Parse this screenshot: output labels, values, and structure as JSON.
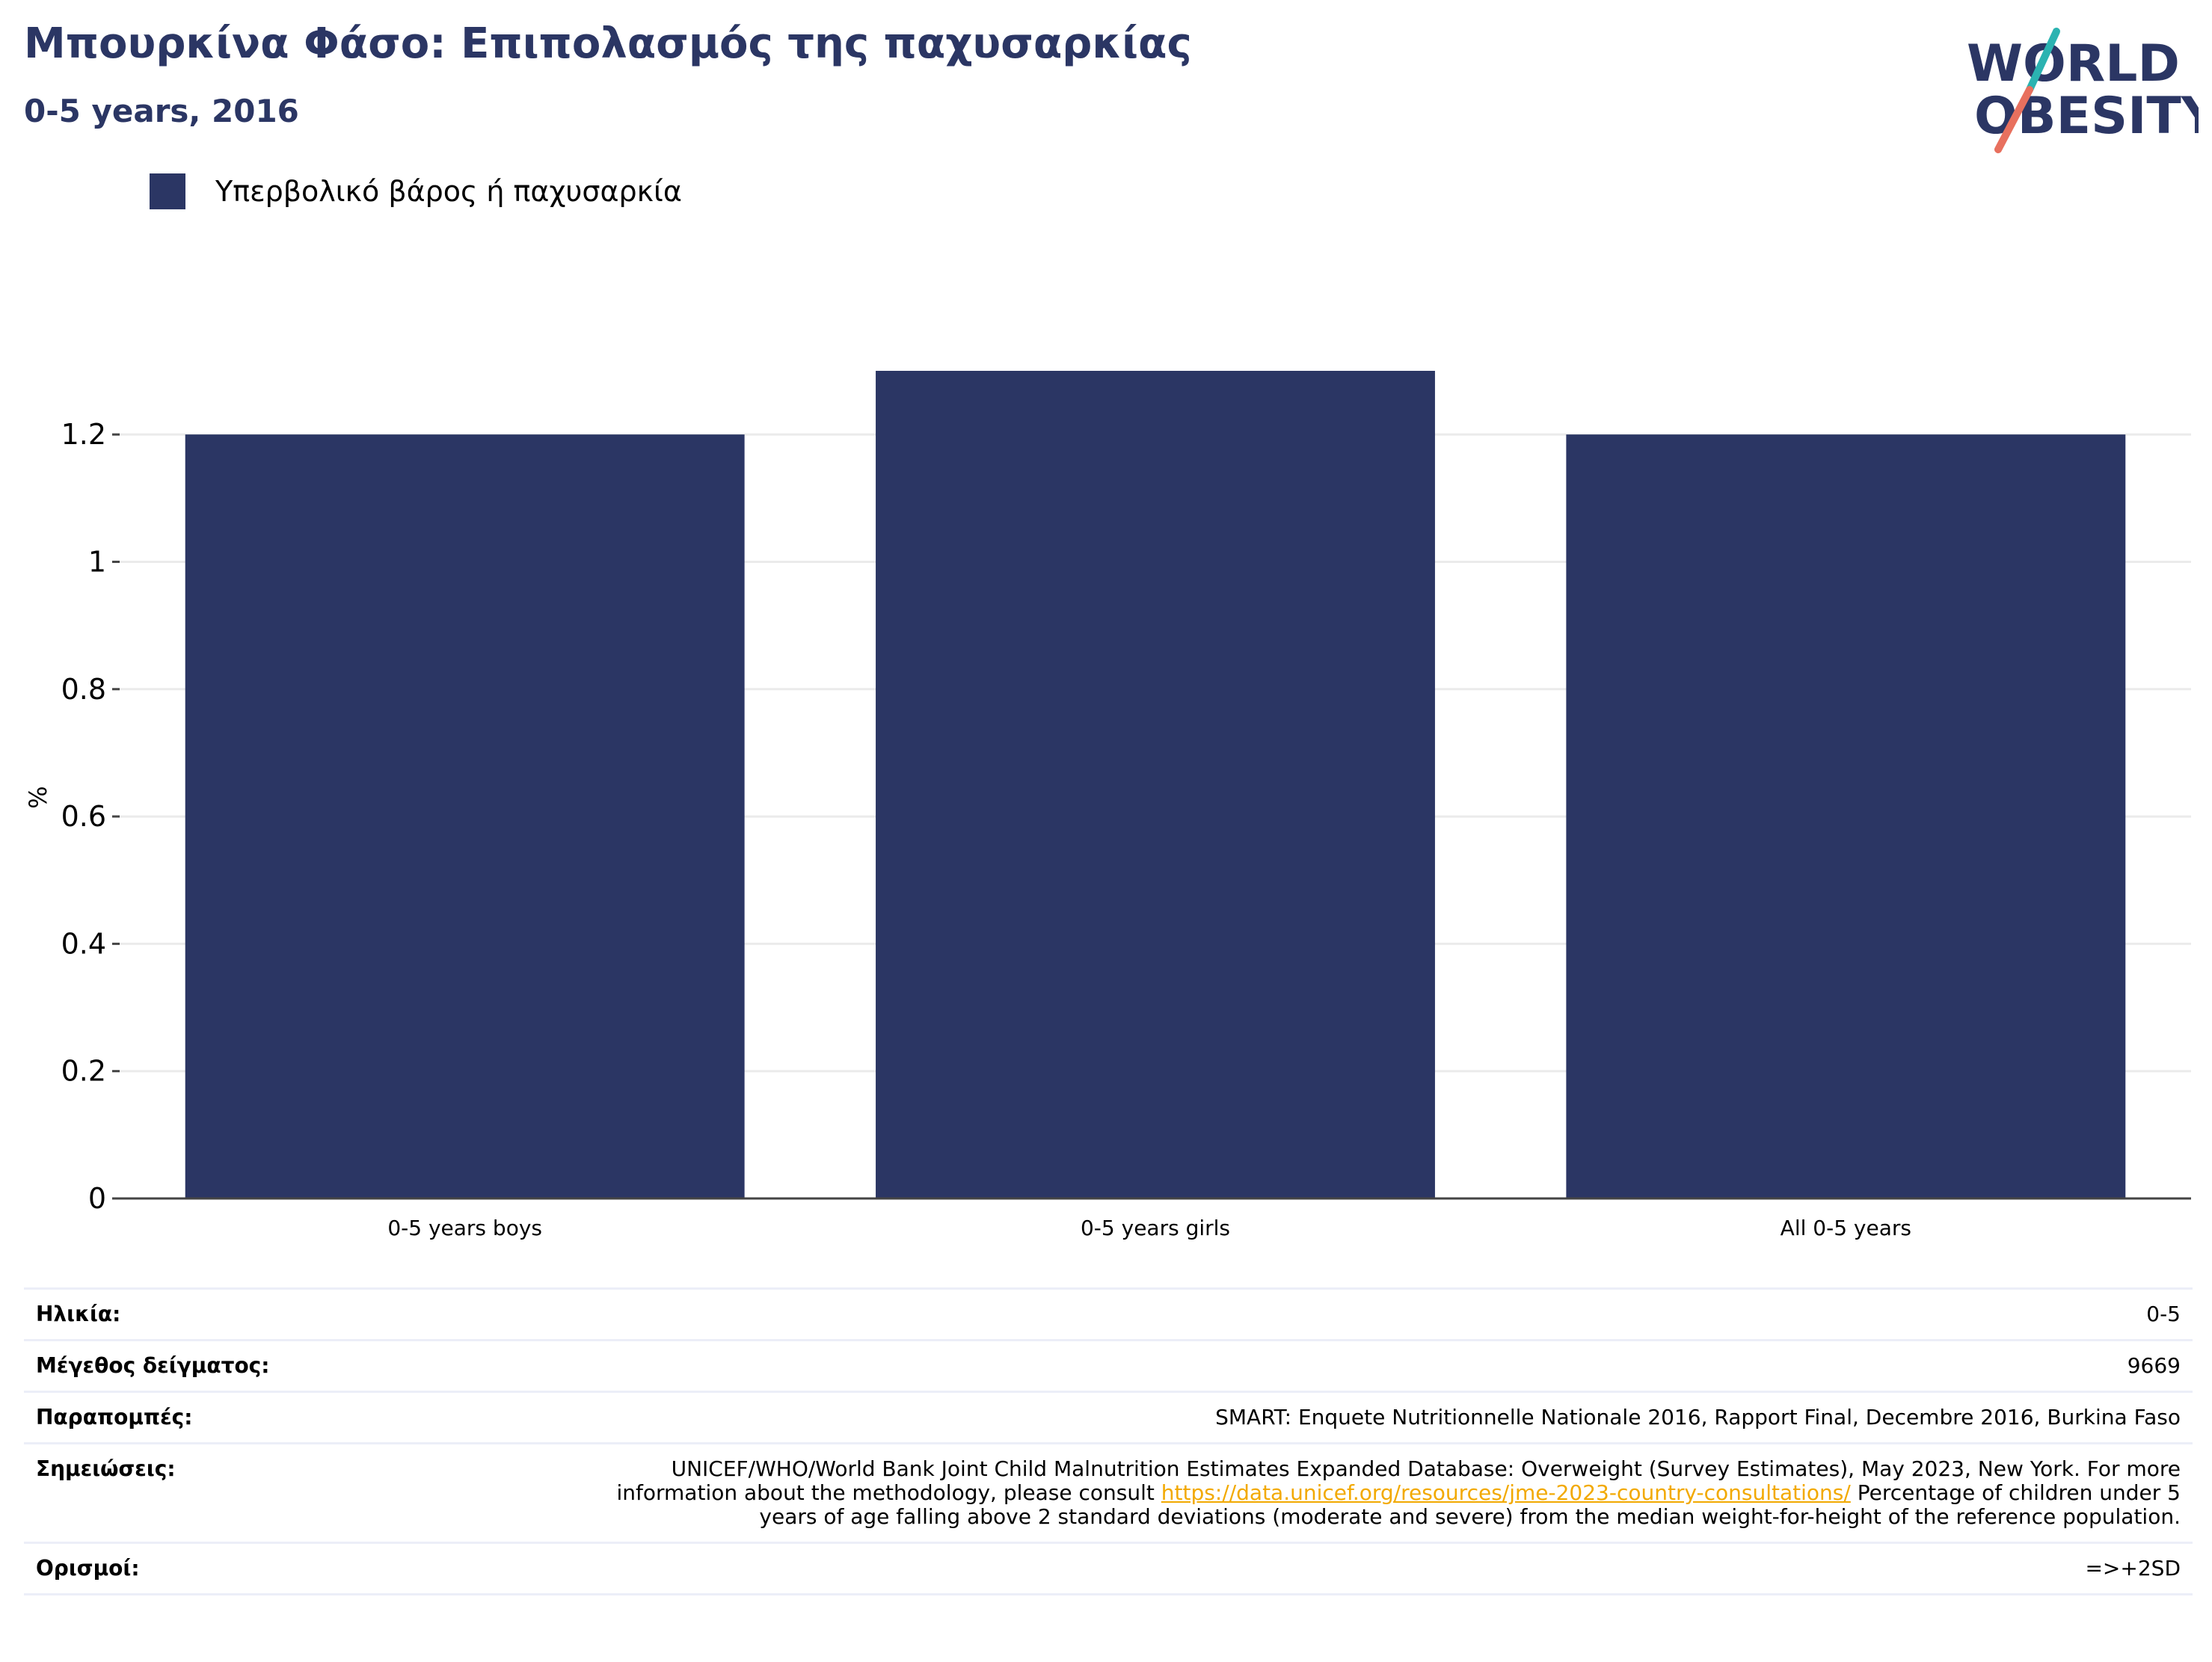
{
  "header": {
    "title": "Μπουρκίνα Φάσο: Επιπολασμός της παχυσαρκίας",
    "subtitle": "0-5 years, 2016"
  },
  "logo": {
    "line1": "WORLD",
    "line2": "OBESITY"
  },
  "legend": {
    "label": "Υπερβολικό βάρος ή παχυσαρκία",
    "color": "#2b3664"
  },
  "chart_data": {
    "type": "bar",
    "categories": [
      "0-5 years boys",
      "0-5 years girls",
      "All 0-5 years"
    ],
    "series": [
      {
        "name": "Υπερβολικό βάρος ή παχυσαρκία",
        "values": [
          1.2,
          1.3,
          1.2
        ]
      }
    ],
    "ylabel": "%",
    "ylim": [
      0,
      1.3
    ],
    "yticks": [
      0,
      0.2,
      0.4,
      0.6,
      0.8,
      1,
      1.2
    ],
    "ytick_labels": [
      "0",
      "0.2",
      "0.4",
      "0.6",
      "0.8",
      "1",
      "1.2"
    ],
    "grid": true,
    "legend_position": "top-left",
    "bar_color": "#2b3664"
  },
  "info": {
    "age_label": "Ηλικία:",
    "age_value": "0-5",
    "sample_label": "Μέγεθος δείγματος:",
    "sample_value": "9669",
    "refs_label": "Παραπομπές:",
    "refs_value": "SMART: Enquete Nutritionnelle Nationale 2016, Rapport Final, Decembre 2016, Burkina Faso",
    "notes_label": "Σημειώσεις:",
    "notes_pre": "UNICEF/WHO/World Bank Joint Child Malnutrition Estimates Expanded Database: Overweight (Survey Estimates), May 2023, New York. For more information about the methodology, please consult ",
    "notes_link": "https://data.unicef.org/resources/jme-2023-country-consultations/",
    "notes_post": " Percentage of children under 5 years of age falling above 2 standard deviations (moderate and severe) from the median weight-for-height of the reference population.",
    "defs_label": "Ορισμοί:",
    "defs_value": "=>+2SD"
  }
}
